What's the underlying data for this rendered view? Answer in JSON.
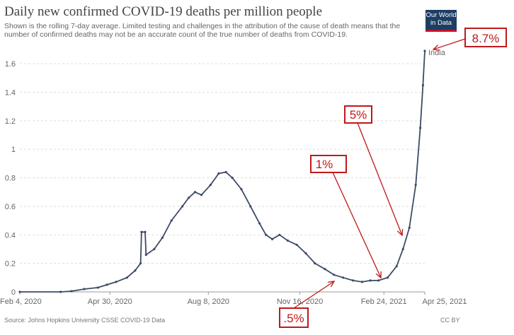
{
  "header": {
    "title": "Daily new confirmed COVID-19 deaths per million people",
    "subtitle": "Shown is the rolling 7-day average. Limited testing and challenges in the attribution of the cause of death means that the number of confirmed deaths may not be an accurate count of the true number of deaths from COVID-19."
  },
  "logo": {
    "line1": "Our World",
    "line2": "in Data"
  },
  "footer": {
    "source": "Source: Johns Hopkins University CSSE COVID-19 Data",
    "license": "CC BY"
  },
  "colors": {
    "line": "#3d4b66",
    "annotation": "#c0181a"
  },
  "chart_data": {
    "type": "line",
    "title": "Daily new confirmed COVID-19 deaths per million people",
    "xlabel": "",
    "ylabel": "",
    "ylim": [
      0,
      1.7
    ],
    "yticks": [
      0,
      0.2,
      0.4,
      0.6,
      0.8,
      1,
      1.2,
      1.4,
      1.6
    ],
    "xticks": [
      "Feb 4, 2020",
      "Apr 30, 2020",
      "Aug 8, 2020",
      "Nov 16, 2020",
      "Feb 24, 2021",
      "Apr 25, 2021"
    ],
    "grid": "horizontal dashed",
    "series": [
      {
        "name": "India",
        "points": [
          [
            "2020-02-04",
            0
          ],
          [
            "2020-03-20",
            0.0
          ],
          [
            "2020-04-01",
            0.005
          ],
          [
            "2020-04-15",
            0.02
          ],
          [
            "2020-04-30",
            0.03
          ],
          [
            "2020-05-10",
            0.05
          ],
          [
            "2020-05-20",
            0.07
          ],
          [
            "2020-06-01",
            0.1
          ],
          [
            "2020-06-10",
            0.15
          ],
          [
            "2020-06-16",
            0.2
          ],
          [
            "2020-06-17",
            0.42
          ],
          [
            "2020-06-21",
            0.42
          ],
          [
            "2020-06-22",
            0.26
          ],
          [
            "2020-07-01",
            0.3
          ],
          [
            "2020-07-10",
            0.38
          ],
          [
            "2020-07-20",
            0.5
          ],
          [
            "2020-08-01",
            0.6
          ],
          [
            "2020-08-08",
            0.66
          ],
          [
            "2020-08-15",
            0.7
          ],
          [
            "2020-08-22",
            0.68
          ],
          [
            "2020-09-01",
            0.75
          ],
          [
            "2020-09-10",
            0.83
          ],
          [
            "2020-09-18",
            0.84
          ],
          [
            "2020-09-25",
            0.8
          ],
          [
            "2020-10-05",
            0.72
          ],
          [
            "2020-10-15",
            0.6
          ],
          [
            "2020-10-25",
            0.48
          ],
          [
            "2020-11-01",
            0.4
          ],
          [
            "2020-11-08",
            0.37
          ],
          [
            "2020-11-16",
            0.4
          ],
          [
            "2020-11-25",
            0.36
          ],
          [
            "2020-12-05",
            0.33
          ],
          [
            "2020-12-15",
            0.27
          ],
          [
            "2020-12-25",
            0.2
          ],
          [
            "2021-01-05",
            0.16
          ],
          [
            "2021-01-15",
            0.12
          ],
          [
            "2021-01-25",
            0.1
          ],
          [
            "2021-02-05",
            0.08
          ],
          [
            "2021-02-15",
            0.07
          ],
          [
            "2021-02-24",
            0.08
          ],
          [
            "2021-03-05",
            0.08
          ],
          [
            "2021-03-15",
            0.1
          ],
          [
            "2021-03-25",
            0.18
          ],
          [
            "2021-04-01",
            0.3
          ],
          [
            "2021-04-08",
            0.45
          ],
          [
            "2021-04-15",
            0.75
          ],
          [
            "2021-04-20",
            1.15
          ],
          [
            "2021-04-23",
            1.45
          ],
          [
            "2021-04-25",
            1.69
          ]
        ]
      }
    ]
  },
  "annotations": [
    {
      "label": "8.7%"
    },
    {
      "label": "5%"
    },
    {
      "label": "1%"
    },
    {
      "label": ".5%"
    }
  ]
}
